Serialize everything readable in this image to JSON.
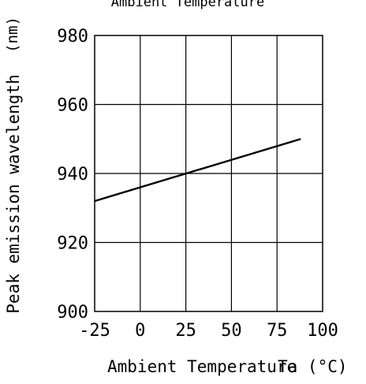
{
  "chart_data": {
    "type": "line",
    "title": "Ambient Temperature",
    "xlabel": "Ambient Temperature",
    "xlabel_symbol": "Ta (°C)",
    "ylabel": "Peak emission wavelength",
    "ylabel_unit": "(nm)",
    "xlim": [
      -25,
      100
    ],
    "ylim": [
      900,
      980
    ],
    "xticks": [
      "-25",
      "0",
      "25",
      "50",
      "75",
      "100"
    ],
    "yticks": [
      "900",
      "920",
      "940",
      "960",
      "980"
    ],
    "grid": true,
    "series": [
      {
        "x": [
          -25,
          88
        ],
        "y": [
          932,
          950
        ]
      }
    ]
  }
}
